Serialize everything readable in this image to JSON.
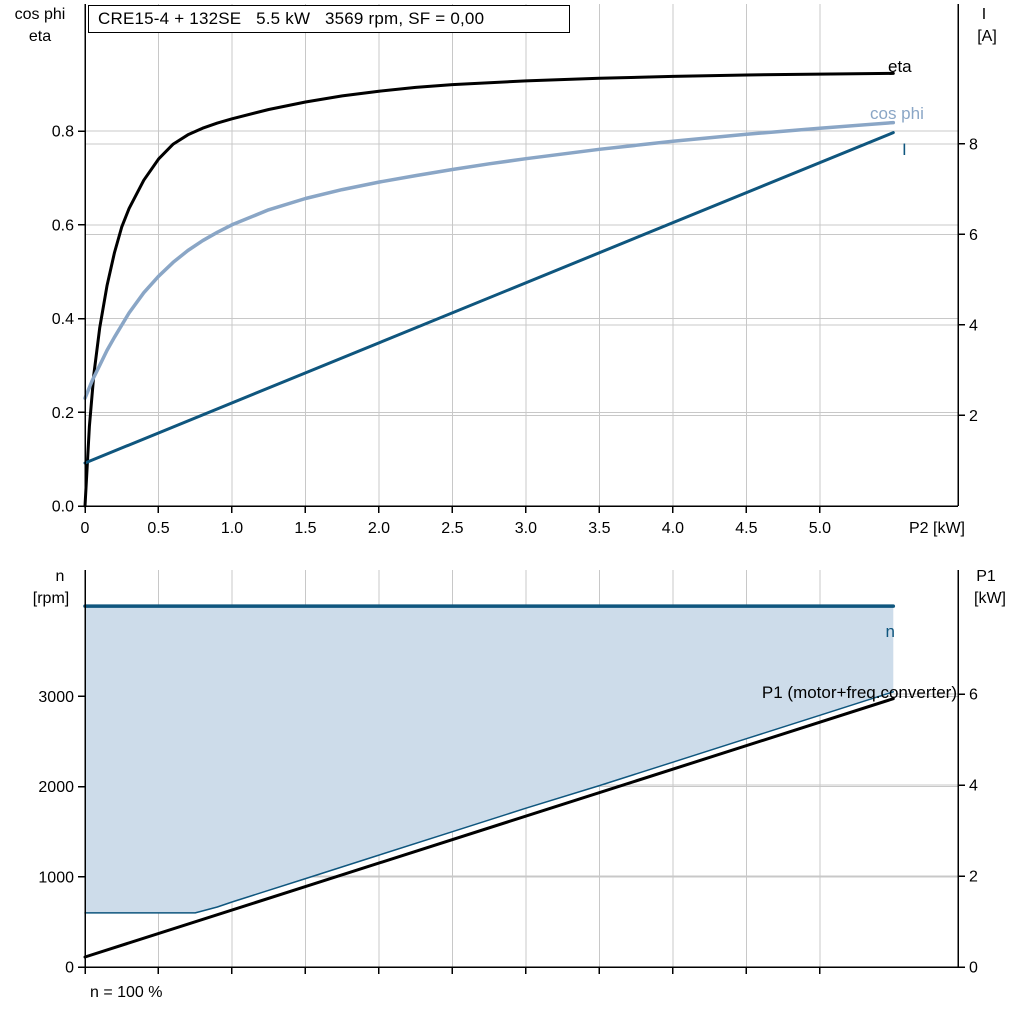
{
  "page": {
    "background": "#ffffff"
  },
  "title_box": {
    "text": "CRE15-4 + 132SE   5.5 kW   3569 rpm, SF = 0,00"
  },
  "footnote": {
    "text": "n = 100 %"
  },
  "colors": {
    "black": "#000000",
    "light_blue": "#8aa6c6",
    "dark_blue": "#0f567e",
    "area_fill": "#cddcea",
    "grid": "#c8c8c8"
  },
  "chart_data": [
    {
      "type": "line",
      "title": "CRE15-4 + 132SE   5.5 kW   3569 rpm, SF = 0,00",
      "x_axis": {
        "label": "P2 [kW]",
        "ticks": [
          0,
          0.5,
          1,
          1.5,
          2,
          2.5,
          3,
          3.5,
          4,
          4.5,
          5
        ],
        "tick_labels": [
          "0",
          "0.5",
          "1.0",
          "1.5",
          "2.0",
          "2.5",
          "3.0",
          "3.5",
          "4.0",
          "4.5",
          "5.0"
        ],
        "range": [
          0,
          5.94
        ]
      },
      "left_axis": {
        "title_lines": [
          "cos phi",
          "eta"
        ],
        "ticks": [
          0,
          0.2,
          0.4,
          0.6,
          0.8
        ],
        "tick_labels": [
          "0.0",
          "0.2",
          "0.4",
          "0.6",
          "0.8"
        ],
        "range": [
          0,
          1.071
        ]
      },
      "right_axis": {
        "title_lines": [
          "I",
          "[A]"
        ],
        "ticks": [
          2,
          4,
          6,
          8
        ],
        "tick_labels": [
          "2",
          "4",
          "6",
          "8"
        ],
        "range": [
          0,
          11.09
        ]
      },
      "series": [
        {
          "name": "eta",
          "label": "eta",
          "axis": "left",
          "color": "#000000",
          "width": 3,
          "points": [
            [
              0,
              0
            ],
            [
              0.03,
              0.17
            ],
            [
              0.06,
              0.28
            ],
            [
              0.1,
              0.38
            ],
            [
              0.15,
              0.47
            ],
            [
              0.2,
              0.54
            ],
            [
              0.25,
              0.595
            ],
            [
              0.3,
              0.635
            ],
            [
              0.4,
              0.695
            ],
            [
              0.5,
              0.74
            ],
            [
              0.6,
              0.772
            ],
            [
              0.7,
              0.792
            ],
            [
              0.8,
              0.806
            ],
            [
              0.9,
              0.817
            ],
            [
              1.0,
              0.826
            ],
            [
              1.25,
              0.846
            ],
            [
              1.5,
              0.862
            ],
            [
              1.75,
              0.875
            ],
            [
              2.0,
              0.885
            ],
            [
              2.25,
              0.893
            ],
            [
              2.5,
              0.899
            ],
            [
              3.0,
              0.907
            ],
            [
              3.5,
              0.9125
            ],
            [
              4.0,
              0.9165
            ],
            [
              4.5,
              0.9195
            ],
            [
              5.0,
              0.9215
            ],
            [
              5.5,
              0.923
            ]
          ]
        },
        {
          "name": "cos phi",
          "label": "cos phi",
          "axis": "left",
          "color": "#8aa6c6",
          "width": 3.5,
          "points": [
            [
              0,
              0.23
            ],
            [
              0.05,
              0.268
            ],
            [
              0.1,
              0.3
            ],
            [
              0.15,
              0.332
            ],
            [
              0.2,
              0.36
            ],
            [
              0.3,
              0.412
            ],
            [
              0.4,
              0.455
            ],
            [
              0.5,
              0.49
            ],
            [
              0.6,
              0.52
            ],
            [
              0.7,
              0.545
            ],
            [
              0.8,
              0.566
            ],
            [
              0.9,
              0.584
            ],
            [
              1.0,
              0.6
            ],
            [
              1.25,
              0.632
            ],
            [
              1.5,
              0.656
            ],
            [
              1.75,
              0.675
            ],
            [
              2.0,
              0.691
            ],
            [
              2.25,
              0.705
            ],
            [
              2.5,
              0.718
            ],
            [
              2.75,
              0.73
            ],
            [
              3.0,
              0.741
            ],
            [
              3.5,
              0.761
            ],
            [
              4.0,
              0.778
            ],
            [
              4.5,
              0.793
            ],
            [
              5.0,
              0.806
            ],
            [
              5.5,
              0.818
            ]
          ]
        },
        {
          "name": "I",
          "label": "I",
          "axis": "right",
          "color": "#0f567e",
          "width": 3,
          "points": [
            [
              0,
              0.95
            ],
            [
              5.5,
              8.25
            ]
          ]
        }
      ]
    },
    {
      "type": "line",
      "title": "",
      "x_axis": {
        "label": "",
        "ticks": [
          0,
          0.5,
          1,
          1.5,
          2,
          2.5,
          3,
          3.5,
          4,
          4.5,
          5
        ],
        "tick_labels": [],
        "range": [
          0,
          5.94
        ]
      },
      "left_axis": {
        "title_lines": [
          "n",
          "[rpm]"
        ],
        "ticks": [
          0,
          1000,
          2000,
          3000
        ],
        "tick_labels": [
          "0",
          "1000",
          "2000",
          "3000"
        ],
        "range": [
          0,
          4400
        ]
      },
      "right_axis": {
        "title_lines": [
          "P1",
          "[kW]"
        ],
        "ticks": [
          0,
          2,
          4,
          6
        ],
        "tick_labels": [
          "0",
          "2",
          "4",
          "6"
        ],
        "range": [
          0,
          8.73
        ]
      },
      "area": {
        "color": "#cddcea",
        "points": [
          [
            0,
            4000
          ],
          [
            5.5,
            4000
          ],
          [
            5.5,
            3050
          ],
          [
            5.0,
            2790
          ],
          [
            4.5,
            2530
          ],
          [
            4.0,
            2270
          ],
          [
            3.5,
            2010
          ],
          [
            3.0,
            1760
          ],
          [
            2.5,
            1500
          ],
          [
            2.0,
            1240
          ],
          [
            1.5,
            980
          ],
          [
            1.25,
            850
          ],
          [
            1.0,
            720
          ],
          [
            0.9,
            665
          ],
          [
            0.75,
            600
          ],
          [
            0,
            600
          ]
        ]
      },
      "series": [
        {
          "name": "nmin",
          "label": "",
          "axis": "left",
          "color": "#0f567e",
          "width": 1.5,
          "points": [
            [
              0,
              600
            ],
            [
              0.75,
              600
            ],
            [
              0.9,
              665
            ],
            [
              1.0,
              720
            ],
            [
              1.25,
              850
            ],
            [
              1.5,
              980
            ],
            [
              2.0,
              1240
            ],
            [
              2.5,
              1500
            ],
            [
              3.0,
              1760
            ],
            [
              3.5,
              2010
            ],
            [
              4.0,
              2270
            ],
            [
              4.5,
              2530
            ],
            [
              5.0,
              2790
            ],
            [
              5.5,
              3050
            ]
          ]
        },
        {
          "name": "P1",
          "label": "P1 (motor+freq.converter)",
          "axis": "right",
          "color": "#000000",
          "width": 3,
          "points": [
            [
              0,
              0.22
            ],
            [
              5.5,
              5.9
            ]
          ]
        },
        {
          "name": "n",
          "label": "n",
          "axis": "left",
          "color": "#0f567e",
          "width": 3.5,
          "points": [
            [
              0,
              4000
            ],
            [
              5.5,
              4000
            ]
          ]
        }
      ],
      "footnote": "n = 100 %"
    }
  ]
}
